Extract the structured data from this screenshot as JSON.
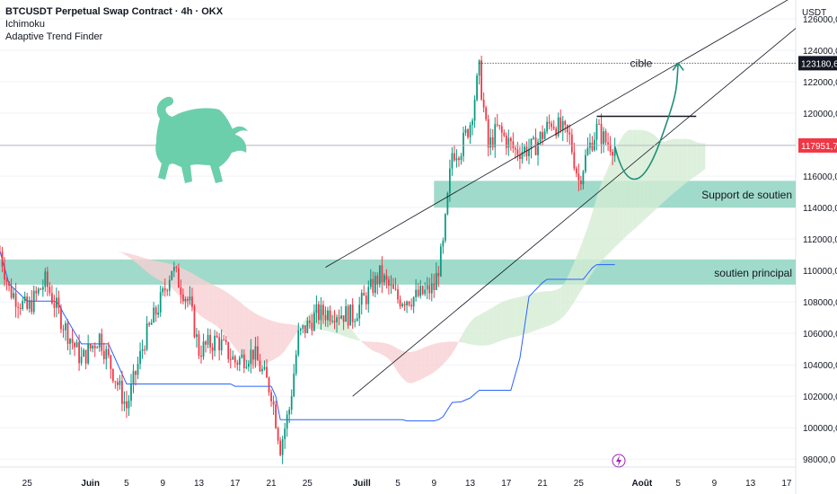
{
  "legend": {
    "symbol": "BTCUSDT Perpetual Swap Contract · 4h · OKX",
    "indicator1": "Ichimoku",
    "indicator2": "Adaptive Trend Finder"
  },
  "price_axis": {
    "unit": "USDT",
    "ticks": [
      "126000,0",
      "124000,0",
      "122000,0",
      "120000,0",
      "118000,0",
      "116000,0",
      "114000,0",
      "112000,0",
      "110000,0",
      "108000,0",
      "106000,0",
      "104000,0",
      "102000,0",
      "100000,0",
      "98000,0"
    ],
    "target_label": "123180,6",
    "current_label": "117951,7"
  },
  "time_axis": {
    "ticks": [
      "25",
      "Juin",
      "5",
      "9",
      "13",
      "17",
      "21",
      "25",
      "Juill",
      "5",
      "9",
      "13",
      "17",
      "21",
      "25",
      "Août",
      "5",
      "9",
      "13",
      "17"
    ]
  },
  "annotations": {
    "target": "cible",
    "support_upper": "Support de soutien",
    "support_lower": "soutien principal"
  },
  "colors": {
    "up": "#089981",
    "down": "#f23645",
    "cloud_bull": "#d5ecd3",
    "cloud_bear": "#f8cfd3",
    "zone": "#8fd4c1",
    "baseline": "#2962ff",
    "bull_icon": "#6ccfac",
    "arrow": "#1f8f7a",
    "current_price": "#f23645",
    "target_price": "#131722"
  },
  "chart_data": {
    "type": "candlestick",
    "title": "BTCUSDT Perpetual Swap Contract · 4h · OKX",
    "yunit": "USDT",
    "ylim": [
      97500,
      127200
    ],
    "x_range": [
      "2025-05-22",
      "2025-08-18"
    ],
    "price_ticks": [
      98000,
      100000,
      102000,
      104000,
      106000,
      108000,
      110000,
      112000,
      114000,
      116000,
      118000,
      120000,
      122000,
      124000,
      126000
    ],
    "current_price": 117951.7,
    "target_price": 123180.6,
    "support_zones": [
      {
        "name": "Support de soutien",
        "from": 114000,
        "to": 115700
      },
      {
        "name": "soutien principal",
        "from": 109100,
        "to": 110700
      }
    ],
    "resistance_line": 119800,
    "close_path": [
      [
        "2025-05-22",
        111200
      ],
      [
        "2025-05-23",
        108800
      ],
      [
        "2025-05-25",
        107500
      ],
      [
        "2025-05-27",
        109300
      ],
      [
        "2025-05-29",
        106600
      ],
      [
        "2025-05-31",
        104300
      ],
      [
        "2025-06-02",
        105800
      ],
      [
        "2025-06-05",
        101300
      ],
      [
        "2025-06-07",
        105600
      ],
      [
        "2025-06-09",
        108400
      ],
      [
        "2025-06-10",
        110200
      ],
      [
        "2025-06-12",
        107800
      ],
      [
        "2025-06-13",
        104900
      ],
      [
        "2025-06-15",
        105600
      ],
      [
        "2025-06-17",
        104200
      ],
      [
        "2025-06-19",
        104800
      ],
      [
        "2025-06-21",
        102300
      ],
      [
        "2025-06-22",
        98800
      ],
      [
        "2025-06-23",
        101200
      ],
      [
        "2025-06-24",
        105800
      ],
      [
        "2025-06-26",
        107200
      ],
      [
        "2025-06-28",
        107400
      ],
      [
        "2025-06-30",
        107100
      ],
      [
        "2025-07-02",
        108800
      ],
      [
        "2025-07-03",
        109700
      ],
      [
        "2025-07-05",
        108200
      ],
      [
        "2025-07-07",
        108300
      ],
      [
        "2025-07-09",
        108900
      ],
      [
        "2025-07-10",
        111500
      ],
      [
        "2025-07-11",
        117500
      ],
      [
        "2025-07-12",
        117800
      ],
      [
        "2025-07-13",
        119400
      ],
      [
        "2025-07-14",
        122700
      ],
      [
        "2025-07-15",
        117800
      ],
      [
        "2025-07-16",
        119000
      ],
      [
        "2025-07-18",
        117600
      ],
      [
        "2025-07-20",
        117800
      ],
      [
        "2025-07-22",
        119500
      ],
      [
        "2025-07-24",
        118400
      ],
      [
        "2025-07-25",
        115700
      ],
      [
        "2025-07-26",
        117600
      ],
      [
        "2025-07-27",
        119000
      ],
      [
        "2025-07-28",
        118200
      ],
      [
        "2025-07-29",
        117900
      ]
    ],
    "projection": [
      [
        "2025-07-29",
        117900
      ],
      [
        "2025-07-31",
        115800
      ],
      [
        "2025-08-03",
        118200
      ],
      [
        "2025-08-05",
        123180.6
      ]
    ],
    "channel_lines": [
      {
        "from": [
          "2025-06-27",
          110200
        ],
        "to": [
          "2025-08-18",
          127500
        ]
      },
      {
        "from": [
          "2025-06-30",
          102000
        ],
        "to": [
          "2025-08-18",
          125400
        ]
      }
    ]
  }
}
